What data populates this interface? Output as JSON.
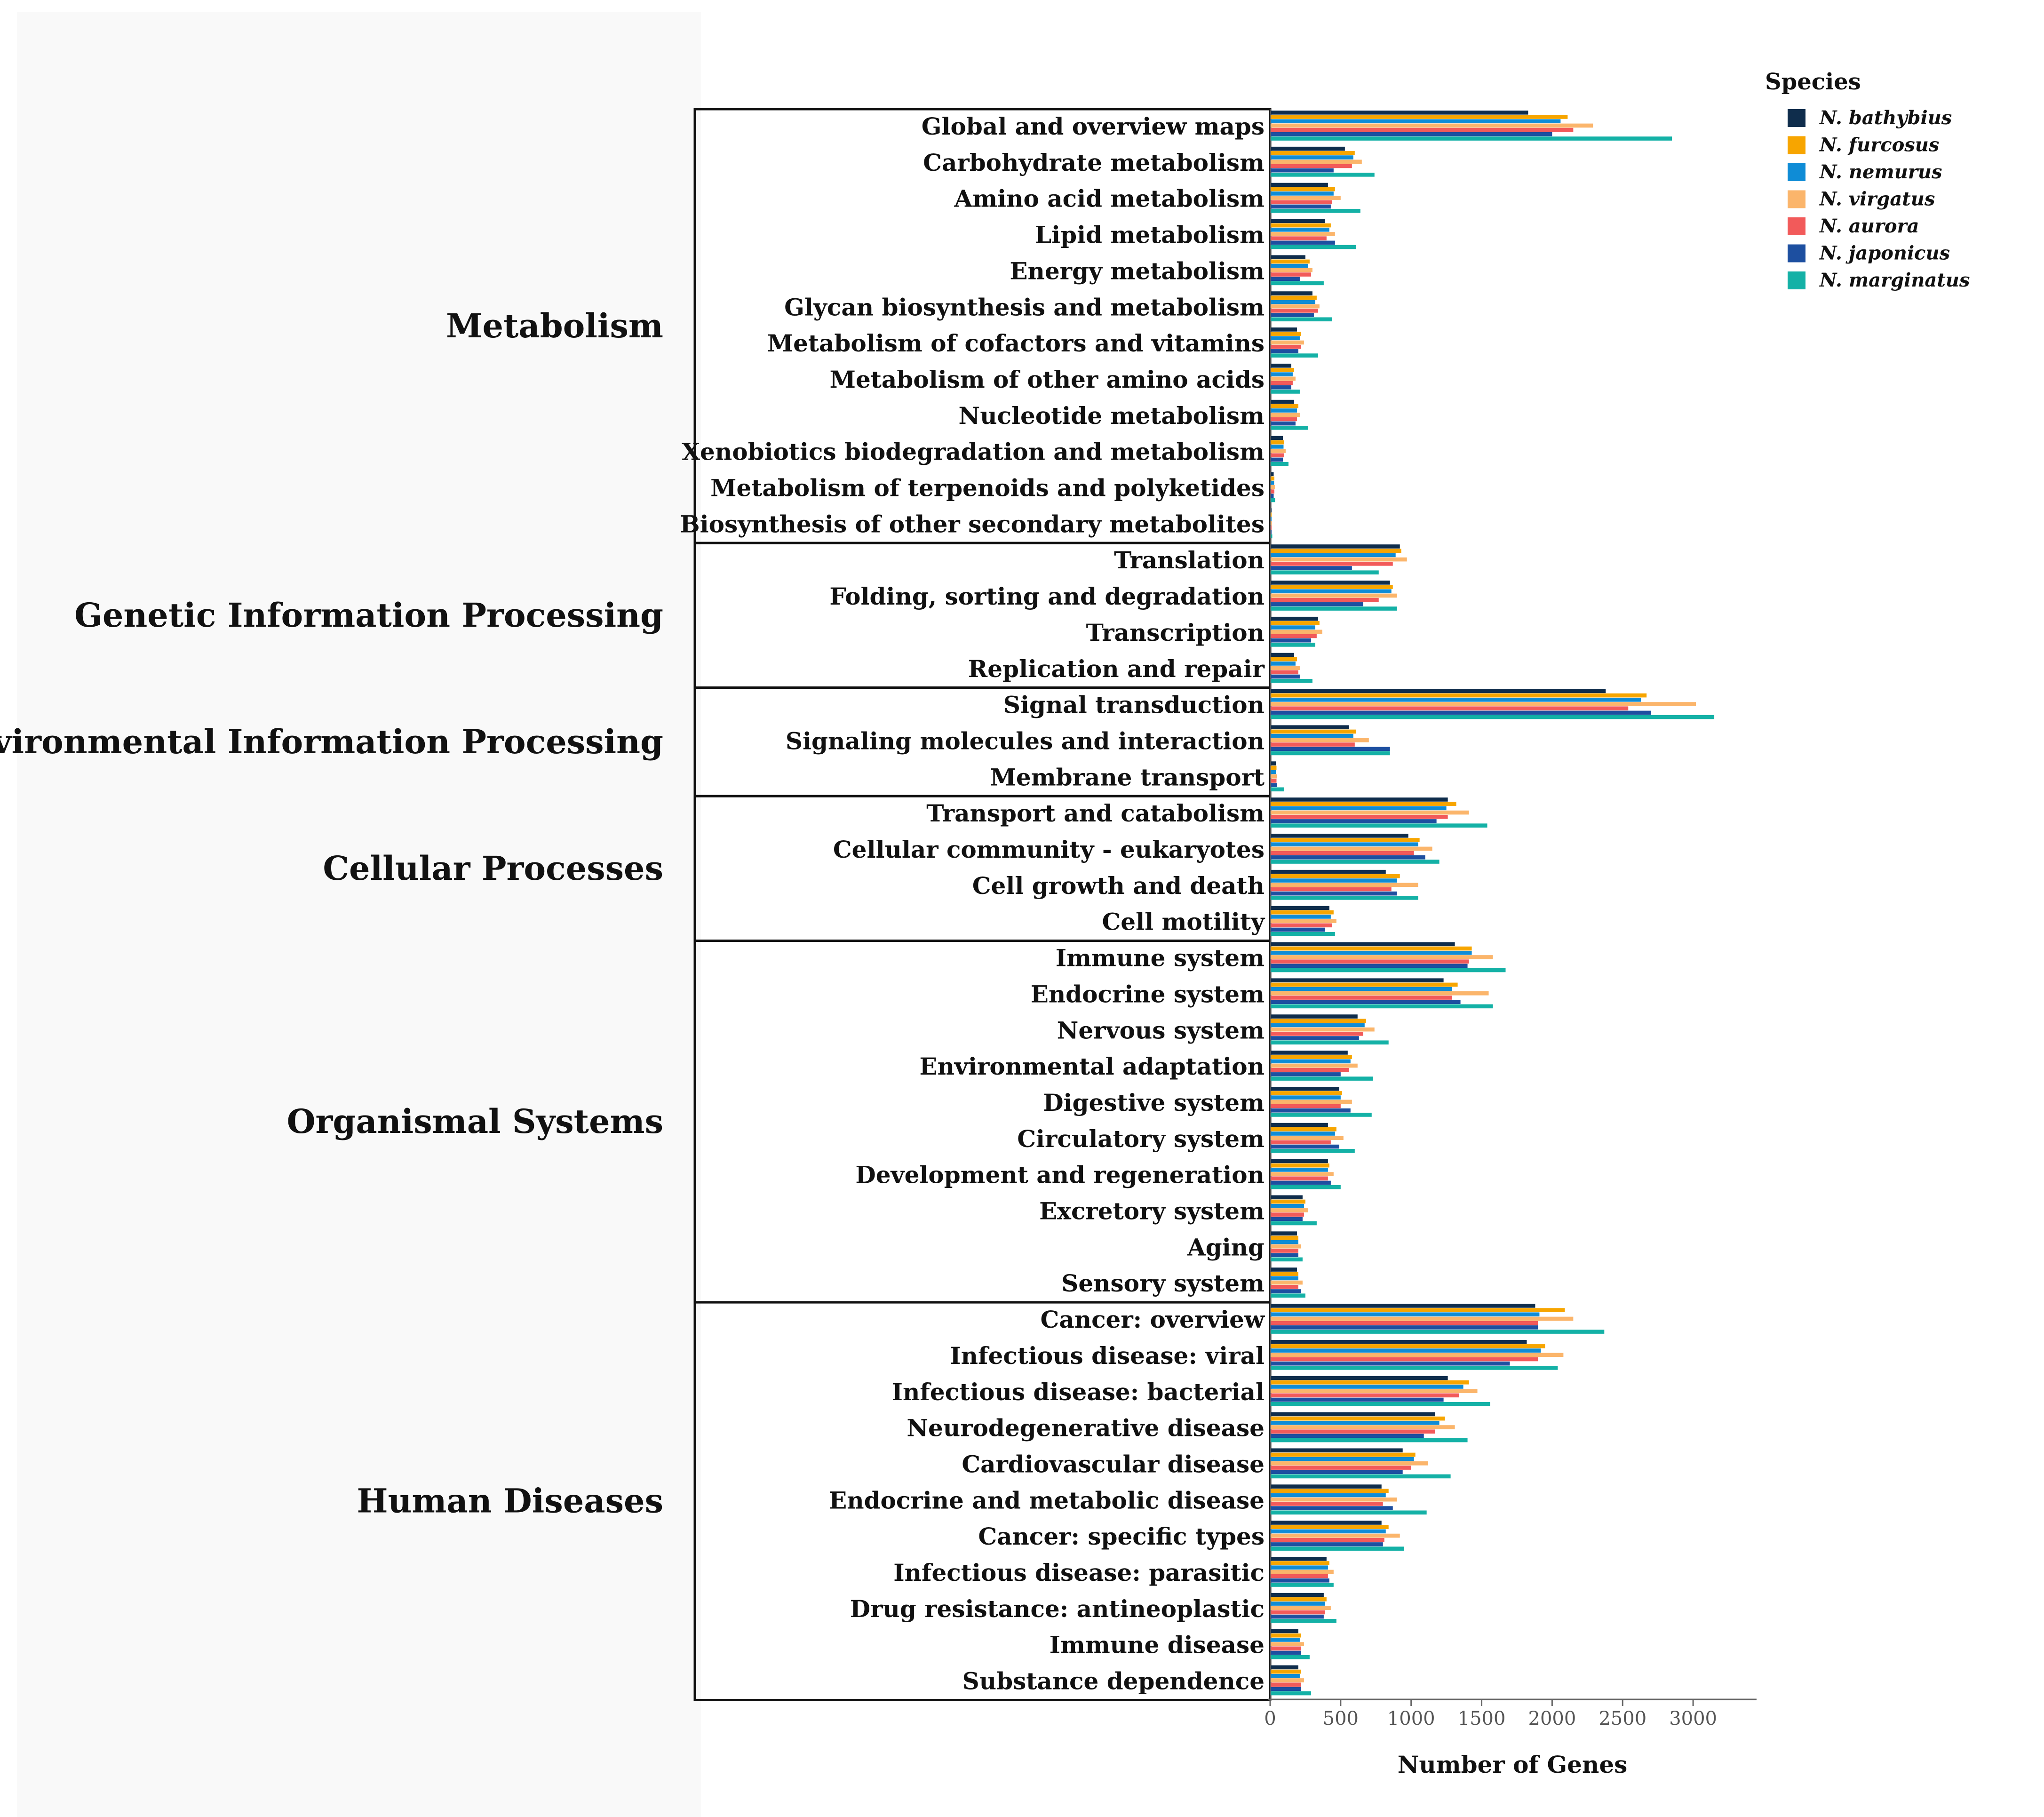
{
  "chart_data": {
    "type": "bar",
    "orientation": "horizontal",
    "xlabel": "Number of Genes",
    "xlim": [
      0,
      3450
    ],
    "xticks": [
      0,
      500,
      1000,
      1500,
      2000,
      2500,
      3000
    ],
    "legend_title": "Species",
    "legend_position": "top-right",
    "groups": [
      {
        "name": "Metabolism",
        "count": 12
      },
      {
        "name": "Genetic Information Processing",
        "count": 4
      },
      {
        "name": "Environmental Information Processing",
        "count": 3
      },
      {
        "name": "Cellular Processes",
        "count": 4
      },
      {
        "name": "Organismal Systems",
        "count": 10
      },
      {
        "name": "Human Diseases",
        "count": 11
      }
    ],
    "categories": [
      "Global and overview maps",
      "Carbohydrate metabolism",
      "Amino acid metabolism",
      "Lipid metabolism",
      "Energy metabolism",
      "Glycan biosynthesis and metabolism",
      "Metabolism of cofactors and vitamins",
      "Metabolism of other amino acids",
      "Nucleotide metabolism",
      "Xenobiotics biodegradation and metabolism",
      "Metabolism of terpenoids and polyketides",
      "Biosynthesis of other secondary metabolites",
      "Translation",
      "Folding, sorting and degradation",
      "Transcription",
      "Replication and repair",
      "Signal transduction",
      "Signaling molecules and interaction",
      "Membrane transport",
      "Transport and catabolism",
      "Cellular community - eukaryotes",
      "Cell growth and death",
      "Cell motility",
      "Immune system",
      "Endocrine system",
      "Nervous system",
      "Environmental adaptation",
      "Digestive system",
      "Circulatory system",
      "Development and regeneration",
      "Excretory system",
      "Aging",
      "Sensory system",
      "Cancer: overview",
      "Infectious disease: viral",
      "Infectious disease: bacterial",
      "Neurodegenerative disease",
      "Cardiovascular disease",
      "Endocrine and metabolic disease",
      "Cancer: specific types",
      "Infectious disease: parasitic",
      "Drug resistance: antineoplastic",
      "Immune disease",
      "Substance dependence"
    ],
    "series": [
      {
        "name": "N. bathybius",
        "color": "#0f2d4c",
        "values": [
          1830,
          530,
          410,
          390,
          250,
          300,
          190,
          150,
          170,
          90,
          25,
          10,
          920,
          850,
          340,
          170,
          2380,
          560,
          40,
          1260,
          980,
          820,
          420,
          1310,
          1230,
          620,
          550,
          490,
          410,
          410,
          230,
          190,
          190,
          1880,
          1820,
          1260,
          1170,
          940,
          790,
          790,
          400,
          380,
          200,
          200
        ]
      },
      {
        "name": "N. furcosus",
        "color": "#f7a500",
        "values": [
          2110,
          600,
          460,
          430,
          280,
          330,
          220,
          170,
          200,
          100,
          30,
          10,
          930,
          870,
          350,
          190,
          2670,
          610,
          45,
          1320,
          1060,
          920,
          450,
          1430,
          1330,
          680,
          580,
          510,
          470,
          420,
          250,
          200,
          200,
          2090,
          1950,
          1410,
          1240,
          1030,
          840,
          840,
          420,
          400,
          220,
          220
        ]
      },
      {
        "name": "N. nemurus",
        "color": "#0f8cd6",
        "values": [
          2060,
          590,
          450,
          420,
          270,
          320,
          210,
          160,
          190,
          95,
          28,
          10,
          890,
          860,
          320,
          180,
          2630,
          590,
          42,
          1250,
          1050,
          900,
          430,
          1430,
          1290,
          670,
          570,
          500,
          460,
          410,
          240,
          200,
          200,
          1910,
          1920,
          1370,
          1200,
          1020,
          820,
          820,
          410,
          390,
          210,
          210
        ]
      },
      {
        "name": "N. virgatus",
        "color": "#fbb56b",
        "values": [
          2290,
          650,
          500,
          460,
          300,
          350,
          240,
          180,
          210,
          110,
          33,
          12,
          970,
          900,
          370,
          210,
          3020,
          700,
          50,
          1410,
          1150,
          1050,
          470,
          1580,
          1550,
          740,
          620,
          580,
          520,
          450,
          270,
          220,
          230,
          2150,
          2080,
          1470,
          1310,
          1120,
          900,
          920,
          450,
          430,
          240,
          240
        ]
      },
      {
        "name": "N. aurora",
        "color": "#f25a5a",
        "values": [
          2150,
          580,
          440,
          400,
          290,
          340,
          220,
          160,
          190,
          100,
          30,
          10,
          870,
          770,
          330,
          200,
          2540,
          600,
          45,
          1260,
          1020,
          860,
          440,
          1410,
          1290,
          660,
          560,
          500,
          430,
          410,
          240,
          200,
          200,
          1900,
          1900,
          1340,
          1170,
          1000,
          800,
          810,
          410,
          390,
          220,
          220
        ]
      },
      {
        "name": "N. japonicus",
        "color": "#1d4fa0",
        "values": [
          2000,
          450,
          430,
          460,
          210,
          310,
          200,
          150,
          180,
          90,
          25,
          10,
          580,
          660,
          290,
          210,
          2700,
          850,
          50,
          1180,
          1100,
          900,
          390,
          1400,
          1350,
          630,
          500,
          570,
          490,
          430,
          230,
          200,
          220,
          1900,
          1700,
          1230,
          1090,
          940,
          870,
          800,
          420,
          380,
          220,
          220
        ]
      },
      {
        "name": "N. marginatus",
        "color": "#14b1a6",
        "values": [
          2850,
          740,
          640,
          610,
          380,
          440,
          340,
          210,
          270,
          130,
          35,
          15,
          770,
          900,
          320,
          300,
          3150,
          850,
          100,
          1540,
          1200,
          1050,
          460,
          1670,
          1580,
          840,
          730,
          720,
          600,
          500,
          330,
          230,
          250,
          2370,
          2040,
          1560,
          1400,
          1280,
          1110,
          950,
          450,
          470,
          280,
          290
        ]
      }
    ]
  }
}
